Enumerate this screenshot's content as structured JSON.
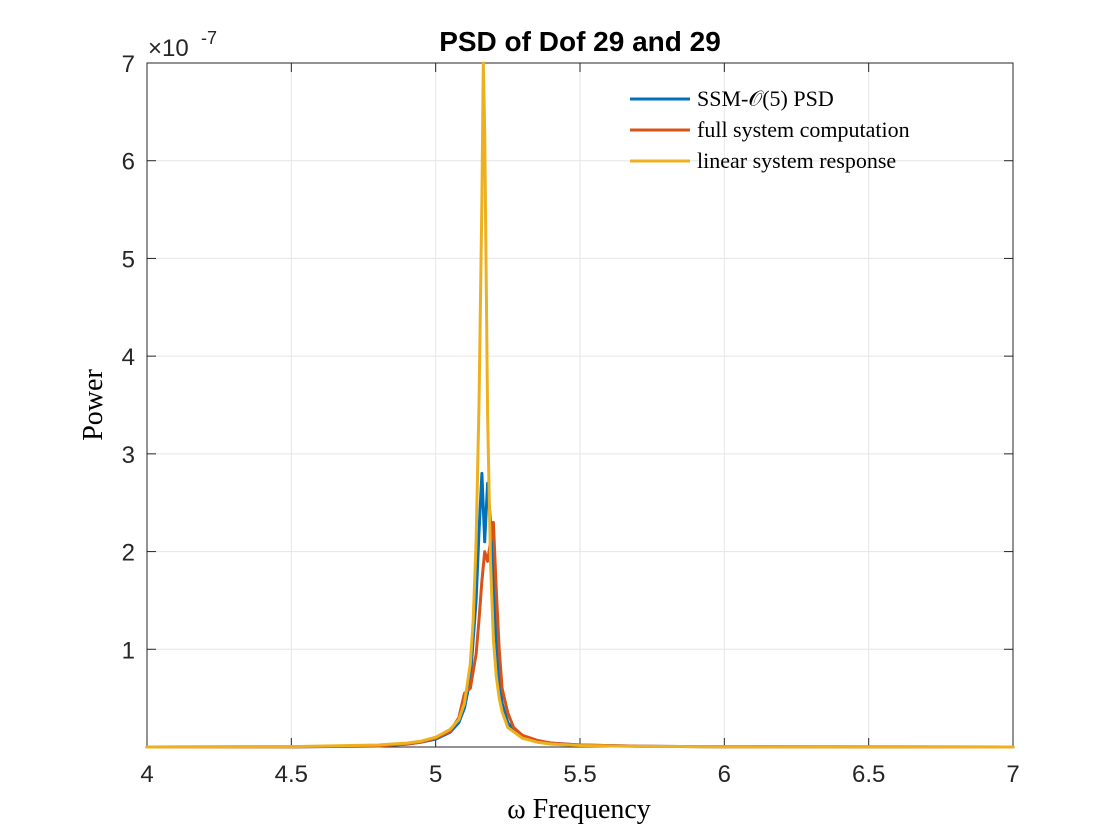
{
  "chart_data": {
    "type": "line",
    "title": "PSD of Dof 29 and 29",
    "xlabel": "ω Frequency",
    "ylabel": "Power",
    "xlim": [
      4,
      7
    ],
    "ylim": [
      0,
      7e-07
    ],
    "x_ticks": [
      4,
      4.5,
      5,
      5.5,
      6,
      6.5,
      7
    ],
    "x_tick_labels": [
      "4",
      "4.5",
      "5",
      "5.5",
      "6",
      "6.5",
      "7"
    ],
    "y_ticks": [
      1e-07,
      2e-07,
      3e-07,
      4e-07,
      5e-07,
      6e-07,
      7e-07
    ],
    "y_tick_labels": [
      "1",
      "2",
      "3",
      "4",
      "5",
      "6",
      "7"
    ],
    "y_multiplier": "×10",
    "y_exponent": "-7",
    "grid": true,
    "legend_position": "top-right",
    "series": [
      {
        "name": "SSM-𝒪(5) PSD",
        "color": "#0072BD",
        "x": [
          4.0,
          4.5,
          4.8,
          4.9,
          4.95,
          5.0,
          5.05,
          5.08,
          5.1,
          5.12,
          5.14,
          5.15,
          5.16,
          5.17,
          5.18,
          5.19,
          5.2,
          5.21,
          5.22,
          5.23,
          5.25,
          5.27,
          5.3,
          5.35,
          5.4,
          5.5,
          5.7,
          6.0,
          6.5,
          7.0
        ],
        "y": [
          0,
          1e-10,
          1e-09,
          3e-09,
          5e-09,
          8e-09,
          1.5e-08,
          2.5e-08,
          4e-08,
          7e-08,
          1.5e-07,
          2.2e-07,
          2.8e-07,
          2.1e-07,
          2.7e-07,
          2.3e-07,
          1.7e-07,
          1.1e-07,
          7e-08,
          4.5e-08,
          2.5e-08,
          1.7e-08,
          1e-08,
          6e-09,
          4e-09,
          2e-09,
          8e-10,
          3e-10,
          1e-10,
          0
        ]
      },
      {
        "name": "full system computation",
        "color": "#D95319",
        "x": [
          4.0,
          4.5,
          4.8,
          4.9,
          4.95,
          5.0,
          5.05,
          5.08,
          5.1,
          5.12,
          5.14,
          5.15,
          5.16,
          5.17,
          5.18,
          5.19,
          5.2,
          5.21,
          5.22,
          5.23,
          5.25,
          5.27,
          5.3,
          5.35,
          5.4,
          5.5,
          5.7,
          6.0,
          6.5,
          7.0
        ],
        "y": [
          0,
          1e-10,
          1e-09,
          3e-09,
          5e-09,
          9e-09,
          1.6e-08,
          3e-08,
          5.5e-08,
          6e-08,
          9.5e-08,
          1.3e-07,
          1.7e-07,
          2e-07,
          1.9e-07,
          2.1e-07,
          2.3e-07,
          1.6e-07,
          1e-07,
          6e-08,
          3.5e-08,
          2e-08,
          1.2e-08,
          7e-09,
          4e-09,
          2e-09,
          8e-10,
          3e-10,
          1e-10,
          0
        ]
      },
      {
        "name": "linear system response",
        "color": "#EDB120",
        "x": [
          4.0,
          4.5,
          4.8,
          4.9,
          4.95,
          5.0,
          5.05,
          5.08,
          5.1,
          5.12,
          5.13,
          5.14,
          5.15,
          5.16,
          5.165,
          5.17,
          5.175,
          5.18,
          5.19,
          5.2,
          5.21,
          5.22,
          5.23,
          5.25,
          5.3,
          5.35,
          5.4,
          5.5,
          5.7,
          6.0,
          6.5,
          7.0
        ],
        "y": [
          0,
          4e-10,
          2e-09,
          4e-09,
          6e-09,
          1e-08,
          1.8e-08,
          2.8e-08,
          4.5e-08,
          8.5e-08,
          1.3e-07,
          2.1e-07,
          3.5e-07,
          5.6e-07,
          7e-07,
          6.3e-07,
          4.8e-07,
          3.4e-07,
          1.9e-07,
          1.1e-07,
          7.2e-08,
          5e-08,
          3.6e-08,
          2e-08,
          9e-09,
          5e-09,
          3e-09,
          1.5e-09,
          6e-10,
          2e-10,
          1e-10,
          0
        ]
      }
    ]
  }
}
